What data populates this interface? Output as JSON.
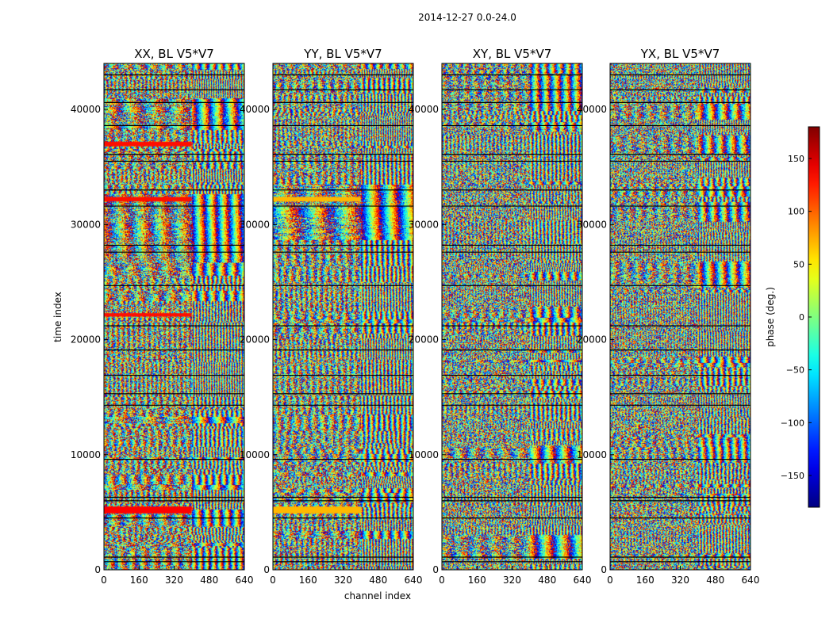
{
  "chart_data": {
    "type": "heatmap",
    "suptitle": "2014-12-27 0.0-24.0",
    "xlabel": "channel index",
    "ylabel": "time index",
    "xlim": [
      0,
      640
    ],
    "ylim": [
      0,
      44000
    ],
    "x_ticks": [
      0,
      160,
      320,
      480,
      640
    ],
    "y_ticks": [
      0,
      10000,
      20000,
      30000,
      40000
    ],
    "panels": [
      {
        "title": "XX, BL V5*V7",
        "key": "XX"
      },
      {
        "title": "YY, BL V5*V7",
        "key": "YY"
      },
      {
        "title": "XY, BL V5*V7",
        "key": "XY"
      },
      {
        "title": "YX, BL V5*V7",
        "key": "YX"
      }
    ],
    "colorbar": {
      "label": "phase (deg.)",
      "range": [
        -180,
        180
      ],
      "ticks": [
        150,
        100,
        50,
        0,
        -50,
        -100,
        -150
      ],
      "tick_labels": [
        "150",
        "100",
        "50",
        "0",
        "−50",
        "−100",
        "−150"
      ],
      "colormap": "jet"
    },
    "gaps_time_index": [
      700,
      1100,
      4500,
      6000,
      6300,
      9600,
      14300,
      15300,
      16900,
      19100,
      21200,
      24700,
      27600,
      28200,
      31600,
      33000,
      35500,
      36100,
      38600,
      40600,
      41700,
      43000
    ],
    "saturated_bands": [
      {
        "panel": "XX",
        "t0": 4900,
        "t1": 5500,
        "c1": 400,
        "phase": 135
      },
      {
        "panel": "YY",
        "t0": 4900,
        "t1": 5500,
        "c1": 400,
        "phase": 70
      },
      {
        "panel": "XX",
        "t0": 32000,
        "t1": 32400,
        "c1": 400,
        "phase": 130
      },
      {
        "panel": "YY",
        "t0": 32000,
        "t1": 32400,
        "c1": 400,
        "phase": 70
      },
      {
        "panel": "XX",
        "t0": 22000,
        "t1": 22300,
        "c1": 400,
        "phase": 130
      },
      {
        "panel": "XX",
        "t0": 36800,
        "t1": 37200,
        "c1": 400,
        "phase": 130
      }
    ]
  }
}
